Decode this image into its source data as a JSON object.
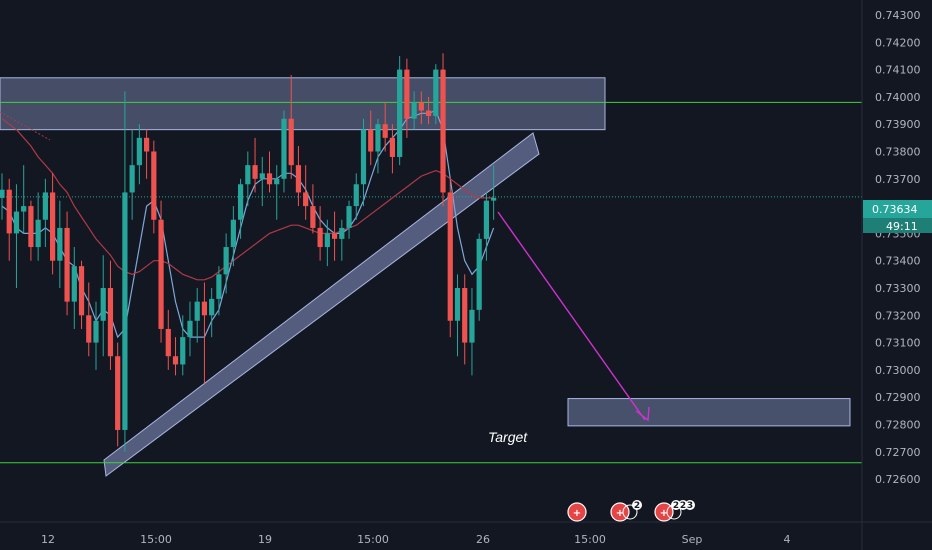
{
  "colors": {
    "background": "#131722",
    "bull": "#26a69a",
    "bear": "#ef5350",
    "zone": "#8a98c8",
    "hline": "#3cd43c",
    "ma_fast": "#7ea7d8",
    "ma_slow": "#b03a48",
    "arrow": "#cc33cc",
    "price_tag": "#26a69a",
    "event": "#e64545"
  },
  "price_axis": {
    "labels": [
      "0.74300",
      "0.74200",
      "0.74100",
      "0.74000",
      "0.73900",
      "0.73800",
      "0.73700",
      "0.73600",
      "0.73500",
      "0.73400",
      "0.73300",
      "0.73200",
      "0.73100",
      "0.73000",
      "0.72900",
      "0.72800",
      "0.72700",
      "0.72600"
    ],
    "current_price": "0.73634",
    "countdown": "49:11"
  },
  "time_axis": {
    "labels": [
      "12",
      "15:00",
      "19",
      "15:00",
      "26",
      "15:00",
      "Sep",
      "4"
    ]
  },
  "annotations": {
    "target_label": "Target",
    "event_counts": [
      "2",
      "2",
      "2",
      "3"
    ]
  },
  "chart_data": {
    "type": "candlestick",
    "ylim": [
      0.7255,
      0.7435
    ],
    "x_tick_labels": [
      "12",
      "15:00",
      "19",
      "15:00",
      "26",
      "15:00",
      "Sep",
      "4"
    ],
    "current_price": 0.73634,
    "horizontal_lines": [
      0.7398,
      0.7266
    ],
    "zones": [
      {
        "name": "resistance",
        "top": 0.7407,
        "bottom": 0.7388
      },
      {
        "name": "target",
        "top": 0.72895,
        "bottom": 0.72795
      }
    ],
    "series": [
      {
        "name": "candles",
        "ohlc": [
          [
            0.7363,
            0.7372,
            0.7355,
            0.7366
          ],
          [
            0.7366,
            0.737,
            0.734,
            0.735
          ],
          [
            0.735,
            0.7368,
            0.733,
            0.7358
          ],
          [
            0.7358,
            0.7375,
            0.735,
            0.736
          ],
          [
            0.736,
            0.7362,
            0.734,
            0.7345
          ],
          [
            0.7345,
            0.7365,
            0.734,
            0.7355
          ],
          [
            0.7355,
            0.737,
            0.7345,
            0.7365
          ],
          [
            0.7365,
            0.7372,
            0.7335,
            0.734
          ],
          [
            0.734,
            0.7362,
            0.733,
            0.7352
          ],
          [
            0.7352,
            0.7358,
            0.732,
            0.7325
          ],
          [
            0.7325,
            0.7345,
            0.7315,
            0.7338
          ],
          [
            0.7338,
            0.734,
            0.7315,
            0.732
          ],
          [
            0.732,
            0.7332,
            0.7305,
            0.731
          ],
          [
            0.731,
            0.7325,
            0.73,
            0.7318
          ],
          [
            0.7318,
            0.7342,
            0.7305,
            0.733
          ],
          [
            0.733,
            0.734,
            0.73,
            0.7305
          ],
          [
            0.7305,
            0.731,
            0.7272,
            0.7278
          ],
          [
            0.7278,
            0.7402,
            0.727,
            0.7365
          ],
          [
            0.7365,
            0.7388,
            0.7355,
            0.7375
          ],
          [
            0.7375,
            0.739,
            0.7368,
            0.7385
          ],
          [
            0.7385,
            0.7388,
            0.737,
            0.738
          ],
          [
            0.738,
            0.7384,
            0.735,
            0.7355
          ],
          [
            0.7355,
            0.7362,
            0.731,
            0.7315
          ],
          [
            0.7315,
            0.7322,
            0.73,
            0.7305
          ],
          [
            0.7305,
            0.7312,
            0.7298,
            0.7302
          ],
          [
            0.7302,
            0.732,
            0.7298,
            0.7312
          ],
          [
            0.7312,
            0.7325,
            0.7305,
            0.7318
          ],
          [
            0.7318,
            0.733,
            0.731,
            0.7325
          ],
          [
            0.7325,
            0.7332,
            0.7295,
            0.732
          ],
          [
            0.732,
            0.733,
            0.7312,
            0.7326
          ],
          [
            0.7326,
            0.7338,
            0.732,
            0.7335
          ],
          [
            0.7335,
            0.735,
            0.7328,
            0.7345
          ],
          [
            0.7345,
            0.736,
            0.7338,
            0.7355
          ],
          [
            0.7355,
            0.737,
            0.7348,
            0.7368
          ],
          [
            0.7368,
            0.738,
            0.736,
            0.7375
          ],
          [
            0.7375,
            0.7385,
            0.7365,
            0.737
          ],
          [
            0.737,
            0.7378,
            0.736,
            0.7372
          ],
          [
            0.7372,
            0.738,
            0.7365,
            0.7368
          ],
          [
            0.7368,
            0.7375,
            0.7355,
            0.737
          ],
          [
            0.737,
            0.7395,
            0.7365,
            0.7392
          ],
          [
            0.7392,
            0.7408,
            0.737,
            0.7375
          ],
          [
            0.7375,
            0.7382,
            0.736,
            0.7365
          ],
          [
            0.7365,
            0.7375,
            0.7355,
            0.736
          ],
          [
            0.736,
            0.7368,
            0.735,
            0.7352
          ],
          [
            0.7352,
            0.736,
            0.734,
            0.7345
          ],
          [
            0.7345,
            0.7355,
            0.7338,
            0.735
          ],
          [
            0.735,
            0.7358,
            0.734,
            0.7348
          ],
          [
            0.7348,
            0.7355,
            0.734,
            0.7352
          ],
          [
            0.7352,
            0.7362,
            0.7348,
            0.736
          ],
          [
            0.736,
            0.7372,
            0.7355,
            0.7368
          ],
          [
            0.7368,
            0.7392,
            0.736,
            0.7388
          ],
          [
            0.7388,
            0.7395,
            0.7375,
            0.738
          ],
          [
            0.738,
            0.7392,
            0.7372,
            0.739
          ],
          [
            0.739,
            0.7398,
            0.738,
            0.7385
          ],
          [
            0.7385,
            0.739,
            0.7372,
            0.7378
          ],
          [
            0.7378,
            0.7415,
            0.7375,
            0.741
          ],
          [
            0.741,
            0.7414,
            0.7385,
            0.7392
          ],
          [
            0.7392,
            0.7402,
            0.7388,
            0.7398
          ],
          [
            0.7398,
            0.7402,
            0.739,
            0.7395
          ],
          [
            0.7395,
            0.74,
            0.739,
            0.7393
          ],
          [
            0.7393,
            0.7412,
            0.739,
            0.741
          ],
          [
            0.741,
            0.7416,
            0.736,
            0.7365
          ],
          [
            0.7365,
            0.737,
            0.7312,
            0.7318
          ],
          [
            0.7318,
            0.7335,
            0.7305,
            0.733
          ],
          [
            0.733,
            0.7335,
            0.7302,
            0.731
          ],
          [
            0.731,
            0.733,
            0.7298,
            0.7322
          ],
          [
            0.7322,
            0.735,
            0.7318,
            0.7348
          ],
          [
            0.7348,
            0.7365,
            0.734,
            0.7362
          ],
          [
            0.7362,
            0.7375,
            0.7355,
            0.7363
          ]
        ]
      },
      {
        "name": "fast-ma",
        "values": [
          0.736,
          0.7358,
          0.7352,
          0.735,
          0.735,
          0.735,
          0.7352,
          0.735,
          0.7345,
          0.734,
          0.7338,
          0.733,
          0.7325,
          0.7318,
          0.7322,
          0.732,
          0.7312,
          0.7315,
          0.733,
          0.7345,
          0.736,
          0.7362,
          0.7355,
          0.734,
          0.7325,
          0.7315,
          0.7312,
          0.7312,
          0.7312,
          0.7318,
          0.7322,
          0.7332,
          0.7342,
          0.7352,
          0.7362,
          0.7368,
          0.737,
          0.737,
          0.737,
          0.7372,
          0.7372,
          0.737,
          0.7366,
          0.736,
          0.7355,
          0.7352,
          0.735,
          0.735,
          0.7352,
          0.7356,
          0.7362,
          0.737,
          0.7378,
          0.7382,
          0.7385,
          0.7388,
          0.7392,
          0.7393,
          0.7394,
          0.7394,
          0.7395,
          0.7388,
          0.737,
          0.7352,
          0.734,
          0.7335,
          0.7338,
          0.7345,
          0.7352
        ]
      },
      {
        "name": "slow-ma",
        "values": [
          0.7392,
          0.739,
          0.7388,
          0.7385,
          0.7382,
          0.7378,
          0.7375,
          0.7372,
          0.7368,
          0.7365,
          0.736,
          0.7356,
          0.7352,
          0.7348,
          0.7345,
          0.7342,
          0.7338,
          0.7336,
          0.7335,
          0.7336,
          0.7338,
          0.734,
          0.734,
          0.7339,
          0.7337,
          0.7335,
          0.7334,
          0.7333,
          0.7333,
          0.7334,
          0.7336,
          0.7338,
          0.734,
          0.7342,
          0.7344,
          0.7346,
          0.7348,
          0.735,
          0.7351,
          0.7352,
          0.7353,
          0.7353,
          0.7352,
          0.7351,
          0.735,
          0.735,
          0.735,
          0.7351,
          0.7352,
          0.7353,
          0.7355,
          0.7357,
          0.7359,
          0.7361,
          0.7363,
          0.7365,
          0.7367,
          0.7369,
          0.7371,
          0.7372,
          0.7373,
          0.7372,
          0.737,
          0.7368,
          0.7366,
          0.7364,
          0.7363,
          0.7363,
          0.7363
        ]
      }
    ]
  }
}
